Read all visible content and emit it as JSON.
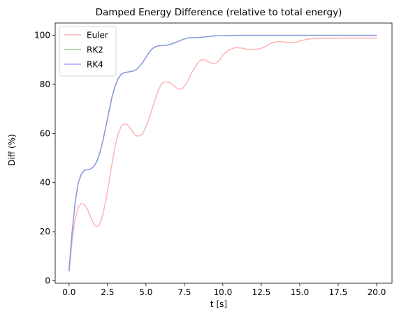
{
  "chart_data": {
    "type": "line",
    "title": "Damped Energy Difference (relative to total energy)",
    "xlabel": "t [s]",
    "ylabel": "Diff (%)",
    "xlim": [
      -0.9,
      21.0
    ],
    "ylim": [
      -1,
      105
    ],
    "xticks": [
      0.0,
      2.5,
      5.0,
      7.5,
      10.0,
      12.5,
      15.0,
      17.5,
      20.0
    ],
    "xtick_labels": [
      "0.0",
      "2.5",
      "5.0",
      "7.5",
      "10.0",
      "12.5",
      "15.0",
      "17.5",
      "20.0"
    ],
    "yticks": [
      0,
      20,
      40,
      60,
      80,
      100
    ],
    "ytick_labels": [
      "0",
      "20",
      "40",
      "60",
      "80",
      "100"
    ],
    "grid": false,
    "legend_position": "top-left",
    "series": [
      {
        "name": "Euler",
        "color": "#ff9999",
        "x": [
          0.0,
          0.2,
          0.4,
          0.6,
          0.8,
          1.0,
          1.2,
          1.4,
          1.6,
          1.8,
          2.0,
          2.2,
          2.4,
          2.6,
          2.8,
          3.0,
          3.2,
          3.4,
          3.6,
          3.8,
          4.0,
          4.2,
          4.4,
          4.6,
          4.8,
          5.0,
          5.2,
          5.4,
          5.6,
          5.8,
          6.0,
          6.2,
          6.4,
          6.6,
          6.8,
          7.0,
          7.2,
          7.4,
          7.6,
          7.8,
          8.0,
          8.2,
          8.4,
          8.6,
          8.8,
          9.0,
          9.2,
          9.4,
          9.6,
          9.8,
          10.0,
          10.4,
          10.8,
          11.2,
          11.6,
          12.0,
          12.4,
          12.8,
          13.2,
          13.6,
          14.0,
          14.4,
          14.8,
          15.2,
          15.6,
          16.0,
          16.4,
          16.8,
          17.2,
          17.6,
          18.0,
          18.4,
          18.8,
          19.2,
          19.6,
          20.0
        ],
        "values": [
          4,
          16,
          25,
          30,
          31.5,
          31,
          29,
          26,
          23,
          22,
          23,
          27,
          33,
          40,
          48,
          55,
          60,
          63,
          64,
          63.5,
          62,
          60,
          59,
          59,
          60,
          63,
          66,
          70,
          74,
          77.5,
          80,
          81,
          81,
          80.5,
          79.5,
          78.5,
          78,
          78.5,
          80,
          82.5,
          85,
          87,
          89,
          90,
          90,
          89.5,
          88.8,
          88.5,
          88.8,
          90,
          92,
          94,
          95,
          94.8,
          94.3,
          94.2,
          94.5,
          95.5,
          97,
          97.5,
          97.3,
          97,
          97.2,
          98,
          98.5,
          98.8,
          98.8,
          98.7,
          98.7,
          98.8,
          98.9,
          98.9,
          98.9,
          98.9,
          98.9,
          98.9
        ]
      },
      {
        "name": "RK2",
        "color": "#66bb66",
        "x": [
          0.0,
          0.2,
          0.4,
          0.6,
          0.8,
          1.0,
          1.2,
          1.4,
          1.6,
          1.8,
          2.0,
          2.2,
          2.4,
          2.6,
          2.8,
          3.0,
          3.2,
          3.4,
          3.6,
          3.8,
          4.0,
          4.2,
          4.4,
          4.6,
          4.8,
          5.0,
          5.2,
          5.4,
          5.6,
          5.8,
          6.0,
          6.2,
          6.4,
          6.6,
          6.8,
          7.0,
          7.2,
          7.4,
          7.6,
          7.8,
          8.0,
          8.4,
          8.8,
          9.2,
          9.6,
          10.0,
          10.4,
          10.8,
          11.2,
          11.6,
          12.0,
          12.8,
          13.6,
          14.4,
          15.2,
          16.0,
          16.8,
          17.6,
          18.4,
          19.2,
          20.0
        ],
        "values": [
          4,
          20,
          32,
          40,
          43.5,
          45,
          45.2,
          45.5,
          46.5,
          48.5,
          52,
          57,
          63,
          69,
          75,
          79.5,
          82.5,
          84.2,
          84.8,
          85,
          85.2,
          85.5,
          86.2,
          87.5,
          89,
          91,
          93,
          94.5,
          95.3,
          95.7,
          95.8,
          95.9,
          96,
          96.3,
          96.8,
          97.3,
          97.8,
          98.3,
          98.7,
          99,
          99,
          99.1,
          99.3,
          99.6,
          99.8,
          99.8,
          99.9,
          100,
          100,
          100,
          100,
          100,
          100,
          100,
          100,
          100,
          100,
          100,
          100,
          100,
          100
        ]
      },
      {
        "name": "RK4",
        "color": "#8888ff",
        "x": [
          0.0,
          0.2,
          0.4,
          0.6,
          0.8,
          1.0,
          1.2,
          1.4,
          1.6,
          1.8,
          2.0,
          2.2,
          2.4,
          2.6,
          2.8,
          3.0,
          3.2,
          3.4,
          3.6,
          3.8,
          4.0,
          4.2,
          4.4,
          4.6,
          4.8,
          5.0,
          5.2,
          5.4,
          5.6,
          5.8,
          6.0,
          6.2,
          6.4,
          6.6,
          6.8,
          7.0,
          7.2,
          7.4,
          7.6,
          7.8,
          8.0,
          8.4,
          8.8,
          9.2,
          9.6,
          10.0,
          10.4,
          10.8,
          11.2,
          11.6,
          12.0,
          12.8,
          13.6,
          14.4,
          15.2,
          16.0,
          16.8,
          17.6,
          18.4,
          19.2,
          20.0
        ],
        "values": [
          4,
          20,
          32,
          40,
          43.5,
          45,
          45.2,
          45.5,
          46.5,
          48.5,
          52,
          57,
          63,
          69,
          75,
          79.5,
          82.5,
          84.2,
          84.8,
          85,
          85.2,
          85.5,
          86.2,
          87.5,
          89,
          91,
          93,
          94.5,
          95.3,
          95.7,
          95.8,
          95.9,
          96,
          96.3,
          96.8,
          97.3,
          97.8,
          98.3,
          98.7,
          99,
          99,
          99.1,
          99.3,
          99.6,
          99.8,
          99.8,
          99.9,
          100,
          100,
          100,
          100,
          100,
          100,
          100,
          100,
          100,
          100,
          100,
          100,
          100,
          100
        ]
      }
    ]
  }
}
